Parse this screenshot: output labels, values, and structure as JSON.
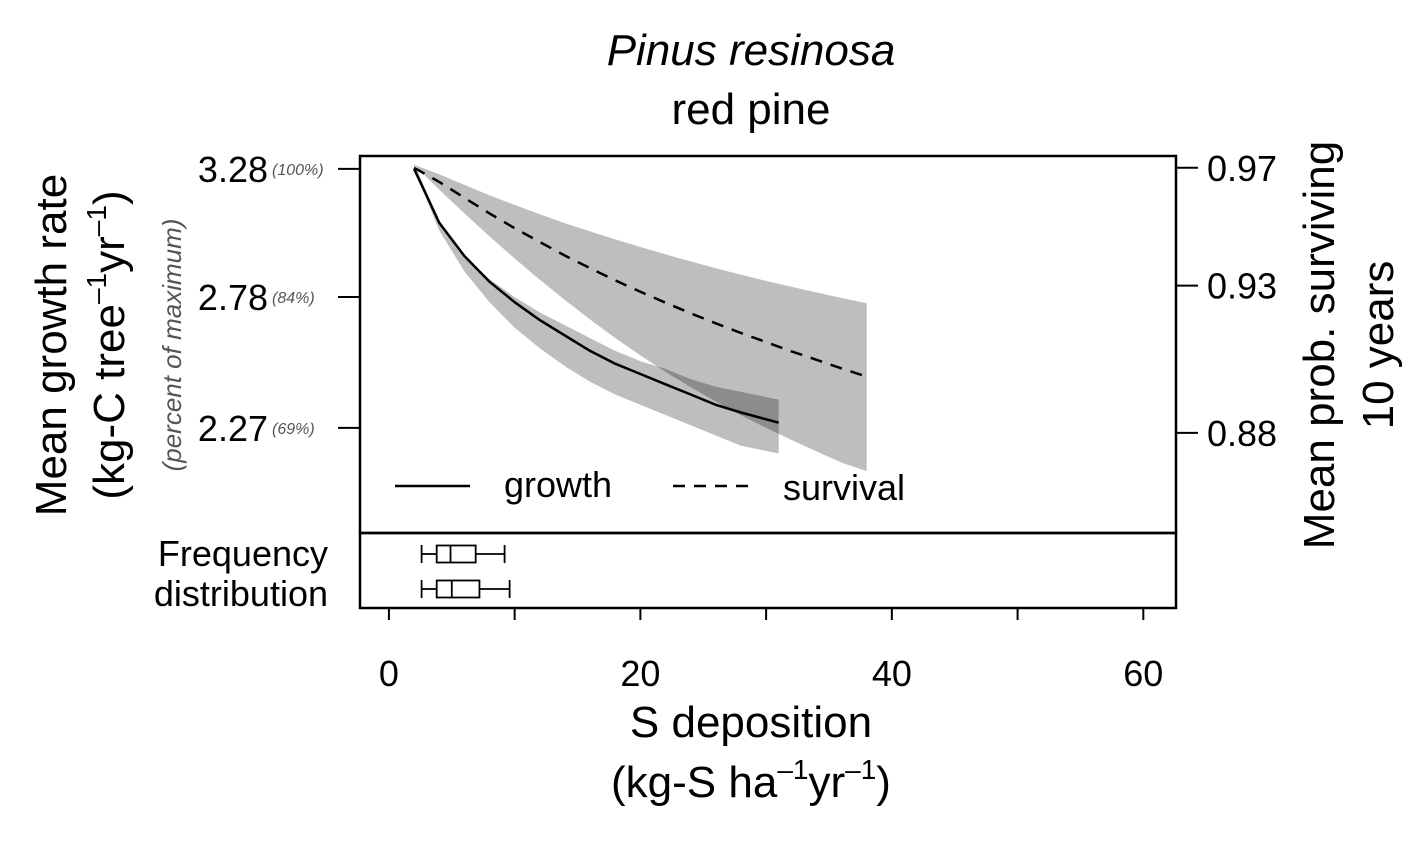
{
  "chart_data": {
    "type": "line",
    "title": "Pinus resinosa",
    "subtitle": "red pine",
    "xlabel": "S deposition",
    "xlabel_units": {
      "pre": "(kg-S ha",
      "sup1": "–1",
      "mid": "yr",
      "sup2": "–1",
      "post": ")"
    },
    "xlim": [
      -2.3,
      62.6
    ],
    "xticks": [
      0,
      10,
      20,
      30,
      40,
      50,
      60
    ],
    "xtick_labels": [
      {
        "value": 0,
        "label": "0"
      },
      {
        "value": 20,
        "label": "20"
      },
      {
        "value": 40,
        "label": "40"
      },
      {
        "value": 60,
        "label": "60"
      }
    ],
    "ylabel_left": "Mean growth rate",
    "ylabel_left_units": {
      "pre": "(kg-C tree",
      "sup1": "–1",
      "mid": "yr",
      "sup2": "–1",
      "post": ")"
    },
    "ylabel_left_secondary": "(percent of maximum)",
    "ylim_left": [
      1.86,
      3.33
    ],
    "yticks_left": [
      {
        "value": 3.28,
        "label": "3.28",
        "pct": "(100%)"
      },
      {
        "value": 2.78,
        "label": "2.78",
        "pct": "(84%)"
      },
      {
        "value": 2.27,
        "label": "2.27",
        "pct": "(69%)"
      }
    ],
    "ylabel_right_line1": "Mean prob. surviving",
    "ylabel_right_line2": "10 years",
    "ylim_right": [
      0.846,
      0.974
    ],
    "yticks_right": [
      {
        "value": 0.97,
        "label": "0.97"
      },
      {
        "value": 0.93,
        "label": "0.93"
      },
      {
        "value": 0.88,
        "label": "0.88"
      }
    ],
    "series": [
      {
        "name": "growth",
        "axis": "left",
        "style": "solid",
        "x": [
          2,
          4,
          6,
          8,
          10,
          12,
          14,
          16,
          18,
          20,
          22,
          24,
          26,
          28,
          31
        ],
        "y": [
          3.28,
          3.07,
          2.94,
          2.84,
          2.76,
          2.69,
          2.63,
          2.57,
          2.52,
          2.48,
          2.44,
          2.4,
          2.36,
          2.33,
          2.29
        ],
        "band_upper": [
          3.3,
          3.08,
          2.94,
          2.85,
          2.78,
          2.72,
          2.67,
          2.62,
          2.57,
          2.53,
          2.5,
          2.46,
          2.43,
          2.41,
          2.38
        ],
        "band_lower": [
          3.28,
          3.04,
          2.88,
          2.76,
          2.66,
          2.58,
          2.51,
          2.45,
          2.4,
          2.36,
          2.32,
          2.28,
          2.24,
          2.2,
          2.17
        ]
      },
      {
        "name": "survival",
        "axis": "right",
        "style": "dashed",
        "x": [
          2,
          4,
          6,
          8,
          10,
          12,
          14,
          16,
          18,
          20,
          22,
          24,
          26,
          28,
          30,
          32,
          34,
          36,
          38
        ],
        "y": [
          0.97,
          0.9652,
          0.9598,
          0.9545,
          0.9495,
          0.9448,
          0.9402,
          0.9359,
          0.9318,
          0.9279,
          0.9242,
          0.9206,
          0.9172,
          0.9139,
          0.9108,
          0.9077,
          0.9048,
          0.9019,
          0.8991
        ],
        "band_upper": [
          0.971,
          0.9678,
          0.9642,
          0.9607,
          0.9574,
          0.9542,
          0.9512,
          0.9484,
          0.9457,
          0.9431,
          0.9406,
          0.9382,
          0.9359,
          0.9337,
          0.9316,
          0.9296,
          0.9277,
          0.9258,
          0.924
        ],
        "band_lower": [
          0.971,
          0.9626,
          0.9545,
          0.9467,
          0.9392,
          0.932,
          0.9251,
          0.9185,
          0.9122,
          0.9063,
          0.9007,
          0.8955,
          0.8906,
          0.886,
          0.8817,
          0.8776,
          0.8737,
          0.8699,
          0.867
        ]
      }
    ],
    "legend": {
      "position": "bottom",
      "entries": [
        "growth",
        "survival"
      ]
    },
    "frequency_panel": {
      "label_line1": "Frequency",
      "label_line2": "distribution",
      "boxplots": [
        {
          "whisker_low": 2.6,
          "q1": 3.8,
          "median": 4.9,
          "q3": 6.9,
          "whisker_high": 9.2
        },
        {
          "whisker_low": 2.6,
          "q1": 3.8,
          "median": 5.0,
          "q3": 7.2,
          "whisker_high": 9.6
        }
      ]
    },
    "colors": {
      "band_light": "#bebebe",
      "band_dark": "#8c8c8c",
      "line": "#000000",
      "pct_text": "#555555"
    },
    "grid": false
  }
}
